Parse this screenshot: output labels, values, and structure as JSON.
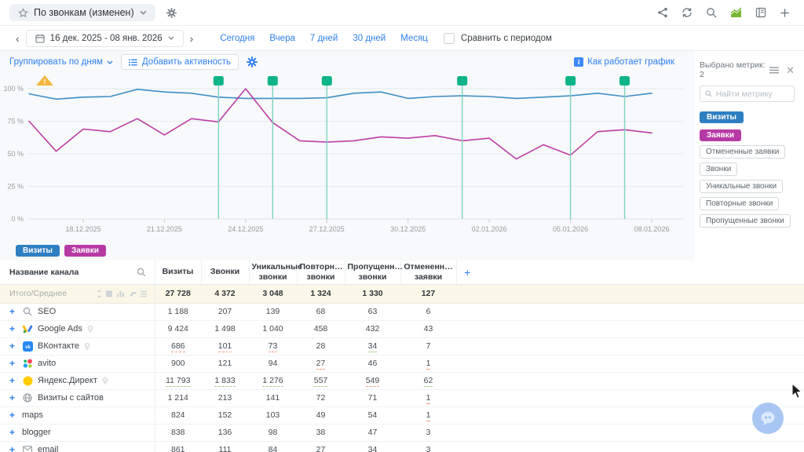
{
  "topbar": {
    "report_title": "По звонкам (изменен)",
    "action_icons": [
      "share-icon",
      "refresh-icon",
      "search-icon",
      "chart-icon",
      "report-book-icon",
      "add-icon"
    ]
  },
  "datebar": {
    "prev": "‹",
    "next": "›",
    "range": "16 дек. 2025 - 08 янв. 2026",
    "presets": [
      "Сегодня",
      "Вчера",
      "7 дней",
      "30 дней",
      "Месяц"
    ],
    "compare_label": "Сравнить с периодом",
    "compare_checked": false
  },
  "chart_toolbar": {
    "group_by": "Группировать по дням",
    "add_activity": "Добавить активность",
    "how_it_works": "Как работает график"
  },
  "metrics_panel": {
    "title": "Выбрано метрик: 2",
    "search_placeholder": "Найти метрику",
    "selected": [
      {
        "label": "Визиты",
        "color": "#2e7fc2"
      },
      {
        "label": "Заявки",
        "color": "#b73aa4"
      }
    ],
    "available": [
      "Отмененные заявки",
      "Звонки",
      "Уникальные звонки",
      "Повторные звонки",
      "Пропущенные звонки"
    ]
  },
  "chart_data": {
    "type": "line",
    "title": "",
    "xlabel": "",
    "ylabel": "",
    "ylim": [
      0,
      100
    ],
    "grid": true,
    "y_ticks": [
      "0 %",
      "25 %",
      "50 %",
      "75 %",
      "100 %"
    ],
    "x": [
      "16.12.2025",
      "17.12.2025",
      "18.12.2025",
      "19.12.2025",
      "20.12.2025",
      "21.12.2025",
      "22.12.2025",
      "23.12.2025",
      "24.12.2025",
      "25.12.2025",
      "26.12.2025",
      "27.12.2025",
      "28.12.2025",
      "29.12.2025",
      "30.12.2025",
      "31.12.2025",
      "01.01.2026",
      "02.01.2026",
      "03.01.2026",
      "04.01.2026",
      "05.01.2026",
      "06.01.2026",
      "07.01.2026",
      "08.01.2026"
    ],
    "x_tick_labels": [
      "18.12.2025",
      "21.12.2025",
      "24.12.2025",
      "27.12.2025",
      "30.12.2025",
      "02.01.2026",
      "05.01.2026",
      "08.01.2026"
    ],
    "series": [
      {
        "name": "Визиты",
        "color": "#3f8fc6",
        "values": [
          96,
          92,
          93.5,
          94,
          99.5,
          97.5,
          96.5,
          93.5,
          92.5,
          92.5,
          92.5,
          93,
          96.5,
          97.5,
          92.5,
          94,
          94.5,
          94,
          92.5,
          93.5,
          94.5,
          96.5,
          94,
          96.5
        ]
      },
      {
        "name": "Заявки",
        "color": "#bd3da6",
        "values": [
          75,
          52,
          69,
          67,
          77,
          64.5,
          77,
          74.5,
          100,
          74,
          60,
          59,
          60,
          63,
          62,
          64,
          60,
          62,
          46,
          57,
          49,
          67,
          68.5,
          66
        ]
      }
    ],
    "activity_markers": {
      "color": "#0db488",
      "dates": [
        "23.12.2025",
        "25.12.2025",
        "27.12.2025",
        "01.01.2026",
        "05.01.2026",
        "07.01.2026"
      ]
    },
    "legend": [
      "Визиты",
      "Заявки"
    ],
    "legend_position": "bottom-left",
    "warning_icon": "warning-triangle-icon"
  },
  "table": {
    "columns": [
      "Название канала",
      "Визиты",
      "Звонки",
      "Уникальные\nзвонки",
      "Повторн…\nзвонки",
      "Пропущенн…\nзвонки",
      "Отмененн…\nзаявки"
    ],
    "add_column_label": "+",
    "total": {
      "name": "Итого/Среднее",
      "values": [
        "27 728",
        "4 372",
        "3 048",
        "1 324",
        "1 330",
        "127"
      ]
    },
    "rows": [
      {
        "icon": "seo",
        "name": "SEO",
        "pin": false,
        "values": [
          {
            "v": "1 188"
          },
          {
            "v": "207"
          },
          {
            "v": "139"
          },
          {
            "v": "68"
          },
          {
            "v": "63"
          },
          {
            "v": "6"
          }
        ]
      },
      {
        "icon": "google-ads",
        "name": "Google Ads",
        "pin": true,
        "values": [
          {
            "v": "9 424"
          },
          {
            "v": "1 498"
          },
          {
            "v": "1 040"
          },
          {
            "v": "458"
          },
          {
            "v": "432"
          },
          {
            "v": "43"
          }
        ]
      },
      {
        "icon": "vk",
        "name": "ВКонтакте",
        "pin": true,
        "values": [
          {
            "v": "686",
            "u": "orange"
          },
          {
            "v": "101",
            "u": "orange"
          },
          {
            "v": "73",
            "u": "orange"
          },
          {
            "v": "28"
          },
          {
            "v": "34",
            "u": "green"
          },
          {
            "v": "7"
          }
        ]
      },
      {
        "icon": "avito",
        "name": "avito",
        "pin": false,
        "values": [
          {
            "v": "900"
          },
          {
            "v": "121"
          },
          {
            "v": "94"
          },
          {
            "v": "27",
            "u": "orange"
          },
          {
            "v": "46"
          },
          {
            "v": "1",
            "u": "orange"
          }
        ]
      },
      {
        "icon": "yandex-direct",
        "name": "Яндекс.Директ",
        "pin": true,
        "values": [
          {
            "v": "11 793",
            "u": "green"
          },
          {
            "v": "1 833",
            "u": "green"
          },
          {
            "v": "1 276",
            "u": "green"
          },
          {
            "v": "557",
            "u": "green"
          },
          {
            "v": "549",
            "u": "orange"
          },
          {
            "v": "62",
            "u": "green"
          }
        ]
      },
      {
        "icon": "globe",
        "name": "Визиты с сайтов",
        "pin": false,
        "values": [
          {
            "v": "1 214"
          },
          {
            "v": "213"
          },
          {
            "v": "141"
          },
          {
            "v": "72"
          },
          {
            "v": "71"
          },
          {
            "v": "1",
            "u": "orange"
          }
        ]
      },
      {
        "icon": null,
        "name": "maps",
        "pin": false,
        "values": [
          {
            "v": "824"
          },
          {
            "v": "152"
          },
          {
            "v": "103"
          },
          {
            "v": "49"
          },
          {
            "v": "54"
          },
          {
            "v": "1",
            "u": "orange"
          }
        ]
      },
      {
        "icon": null,
        "name": "blogger",
        "pin": false,
        "values": [
          {
            "v": "838"
          },
          {
            "v": "136"
          },
          {
            "v": "98"
          },
          {
            "v": "38"
          },
          {
            "v": "47"
          },
          {
            "v": "3"
          }
        ]
      },
      {
        "icon": "email",
        "name": "email",
        "pin": false,
        "values": [
          {
            "v": "861"
          },
          {
            "v": "111"
          },
          {
            "v": "84"
          },
          {
            "v": "27",
            "u": "orange"
          },
          {
            "v": "34",
            "u": "green"
          },
          {
            "v": "3"
          }
        ]
      }
    ]
  }
}
